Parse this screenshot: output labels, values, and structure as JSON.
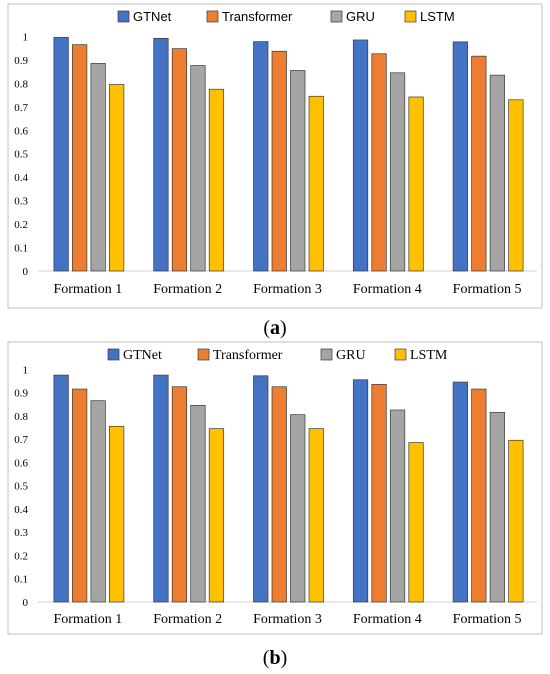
{
  "chart_data": [
    {
      "type": "bar",
      "panel_label": "a",
      "categories": [
        "Formation 1",
        "Formation 2",
        "Formation 3",
        "Formation 4",
        "Formation 5"
      ],
      "series": [
        {
          "name": "GTNet",
          "color": "#4472C4",
          "values": [
            0.996,
            0.992,
            0.978,
            0.985,
            0.977
          ]
        },
        {
          "name": "Transformer",
          "color": "#ED7D31",
          "values": [
            0.965,
            0.948,
            0.937,
            0.926,
            0.916
          ]
        },
        {
          "name": "GRU",
          "color": "#A5A5A5",
          "values": [
            0.885,
            0.876,
            0.855,
            0.845,
            0.835
          ]
        },
        {
          "name": "LSTM",
          "color": "#FFC000",
          "values": [
            0.795,
            0.775,
            0.745,
            0.742,
            0.73
          ]
        }
      ],
      "yticks": [
        "0",
        "0.1",
        "0.2",
        "0.3",
        "0.4",
        "0.5",
        "0.6",
        "0.7",
        "0.8",
        "0.9",
        "1"
      ],
      "ylim": [
        0,
        1.1
      ],
      "legend_position": "top"
    },
    {
      "type": "bar",
      "panel_label": "b",
      "categories": [
        "Formation 1",
        "Formation 2",
        "Formation 3",
        "Formation 4",
        "Formation 5"
      ],
      "series": [
        {
          "name": "GTNet",
          "color": "#4472C4",
          "values": [
            0.975,
            0.975,
            0.972,
            0.955,
            0.945
          ]
        },
        {
          "name": "Transformer",
          "color": "#ED7D31",
          "values": [
            0.915,
            0.925,
            0.925,
            0.935,
            0.915
          ]
        },
        {
          "name": "GRU",
          "color": "#A5A5A5",
          "values": [
            0.865,
            0.845,
            0.805,
            0.825,
            0.815
          ]
        },
        {
          "name": "LSTM",
          "color": "#FFC000",
          "values": [
            0.755,
            0.745,
            0.745,
            0.685,
            0.695
          ]
        }
      ],
      "yticks": [
        "0",
        "0.1",
        "0.2",
        "0.3",
        "0.4",
        "0.5",
        "0.6",
        "0.7",
        "0.8",
        "0.9",
        "1"
      ],
      "ylim": [
        0,
        1.1
      ],
      "legend_position": "top"
    }
  ],
  "captions": [
    {
      "open": "(",
      "label": "a",
      "close": ")"
    },
    {
      "open": "(",
      "label": "b",
      "close": ")"
    }
  ]
}
